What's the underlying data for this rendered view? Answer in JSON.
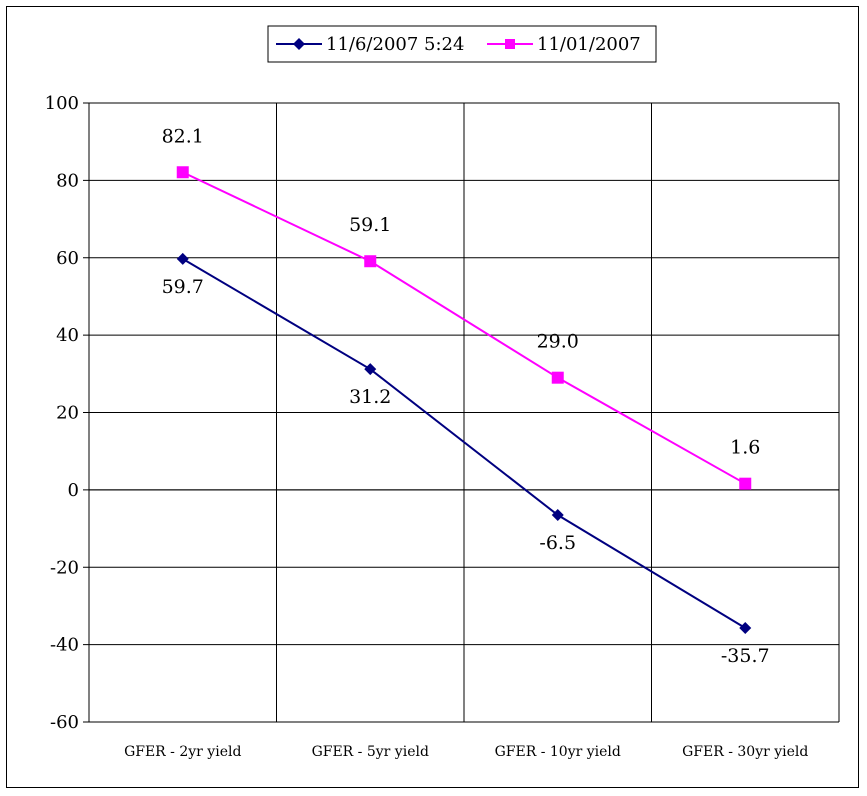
{
  "chart_data": {
    "type": "line",
    "categories": [
      "GFER - 2yr yield",
      "GFER - 5yr yield",
      "GFER - 10yr yield",
      "GFER - 30yr yield"
    ],
    "series": [
      {
        "name": "11/6/2007 5:24",
        "values": [
          59.7,
          31.2,
          -6.5,
          -35.7
        ],
        "labels": [
          "59.7",
          "31.2",
          "-6.5",
          "-35.7"
        ],
        "color": "#000080",
        "marker": "diamond",
        "label_position": "below"
      },
      {
        "name": "11/01/2007",
        "values": [
          82.1,
          59.1,
          29.0,
          1.6
        ],
        "labels": [
          "82.1",
          "59.1",
          "29.0",
          "1.6"
        ],
        "color": "#ff00ff",
        "marker": "square",
        "label_position": "above"
      }
    ],
    "yticks": [
      "100",
      "80",
      "60",
      "40",
      "20",
      "0",
      "-20",
      "-40",
      "-60"
    ],
    "ylim": [
      -60,
      100
    ],
    "grid": true,
    "legend": "top-center"
  }
}
